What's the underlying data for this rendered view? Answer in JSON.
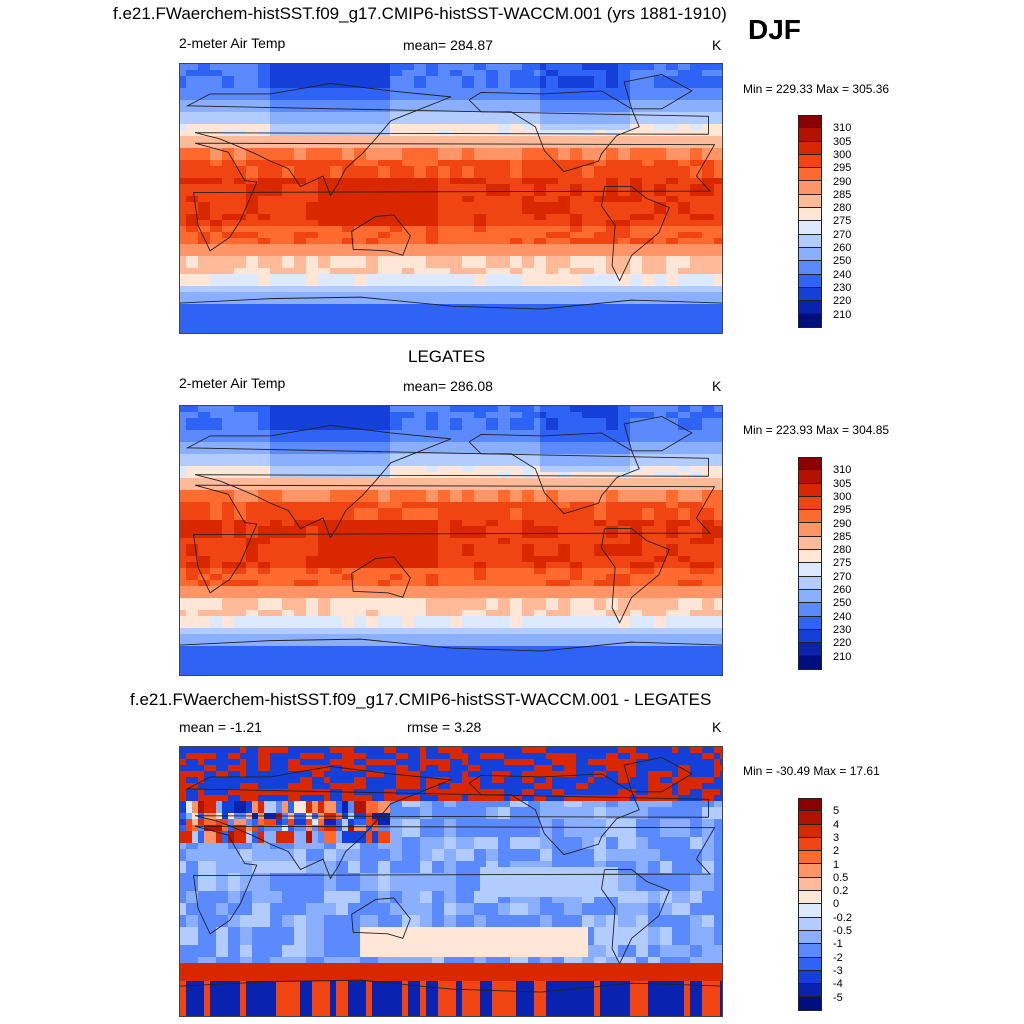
{
  "season": "DJF",
  "panels": [
    {
      "title": "f.e21.FWaerchem-histSST.f09_g17.CMIP6-histSST-WACCM.001 (yrs 1881-1910)",
      "left_label": "2-meter Air Temp",
      "center_label": "mean= 284.87",
      "units": "K",
      "minmax": "Min = 229.33 Max = 305.36"
    },
    {
      "title": "LEGATES",
      "left_label": "2-meter Air Temp",
      "center_label": "mean= 286.08",
      "units": "K",
      "minmax": "Min = 223.93 Max = 304.85"
    },
    {
      "title": "f.e21.FWaerchem-histSST.f09_g17.CMIP6-histSST-WACCM.001 - LEGATES",
      "left_label": "mean =  -1.21",
      "center_label": "rmse =   3.28",
      "units": "K",
      "minmax": "Min = -30.49 Max =  17.61"
    }
  ],
  "chart_data": [
    {
      "type": "heatmap",
      "title": "f.e21.FWaerchem-histSST.f09_g17.CMIP6-histSST-WACCM.001 (yrs 1881-1910)",
      "variable": "2-meter Air Temp",
      "units": "K",
      "mean": 284.87,
      "min": 229.33,
      "max": 305.36,
      "colorbar_levels": [
        "310",
        "305",
        "300",
        "295",
        "290",
        "285",
        "280",
        "275",
        "270",
        "260",
        "250",
        "240",
        "230",
        "220",
        "210"
      ],
      "colorbar_colors": [
        "#8b0000",
        "#b31200",
        "#d92800",
        "#f04512",
        "#ff6a2e",
        "#ff9466",
        "#ffbb99",
        "#ffe6d6",
        "#dce9ff",
        "#b3ccff",
        "#8aafff",
        "#5b8aff",
        "#2f63f5",
        "#1440d9",
        "#0a22b0",
        "#000f80"
      ]
    },
    {
      "type": "heatmap",
      "title": "LEGATES",
      "variable": "2-meter Air Temp",
      "units": "K",
      "mean": 286.08,
      "min": 223.93,
      "max": 304.85,
      "colorbar_levels": [
        "310",
        "305",
        "300",
        "295",
        "290",
        "285",
        "280",
        "275",
        "270",
        "260",
        "250",
        "240",
        "230",
        "220",
        "210"
      ],
      "colorbar_colors": [
        "#8b0000",
        "#b31200",
        "#d92800",
        "#f04512",
        "#ff6a2e",
        "#ff9466",
        "#ffbb99",
        "#ffe6d6",
        "#dce9ff",
        "#b3ccff",
        "#8aafff",
        "#5b8aff",
        "#2f63f5",
        "#1440d9",
        "#0a22b0",
        "#000f80"
      ]
    },
    {
      "type": "heatmap",
      "title": "f.e21.FWaerchem-histSST.f09_g17.CMIP6-histSST-WACCM.001 - LEGATES",
      "units": "K",
      "mean": -1.21,
      "rmse": 3.28,
      "min": -30.49,
      "max": 17.61,
      "colorbar_levels": [
        "5",
        "4",
        "3",
        "2",
        "1",
        "0.5",
        "0.2",
        "0",
        "-0.2",
        "-0.5",
        "-1",
        "-2",
        "-3",
        "-4",
        "-5"
      ],
      "colorbar_colors": [
        "#8b0000",
        "#b31200",
        "#d92800",
        "#f04512",
        "#ff6a2e",
        "#ff9466",
        "#ffbb99",
        "#ffe6d6",
        "#dce9ff",
        "#b3ccff",
        "#8aafff",
        "#5b8aff",
        "#2f63f5",
        "#1440d9",
        "#0a22b0",
        "#000f80"
      ]
    }
  ]
}
